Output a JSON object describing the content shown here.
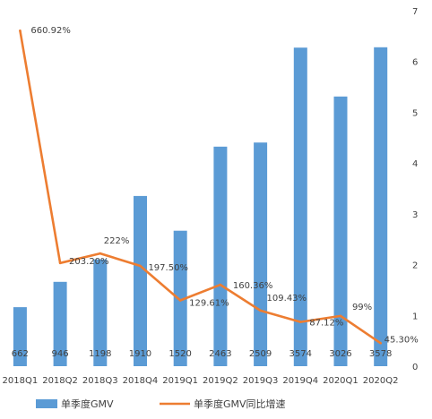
{
  "chart_data": {
    "type": "bar",
    "title": "",
    "xlabel": "",
    "ylabel": "",
    "categories": [
      "2018Q1",
      "2018Q2",
      "2018Q3",
      "2018Q4",
      "2019Q1",
      "2019Q2",
      "2019Q3",
      "2019Q4",
      "2020Q1",
      "2020Q2"
    ],
    "series": [
      {
        "name": "单季度GMV",
        "type": "bar",
        "axis": "right",
        "color": "#5B9BD5",
        "values": [
          662,
          946,
          1198,
          1910,
          1520,
          2463,
          2509,
          3574,
          3026,
          3578
        ],
        "labels": [
          "662",
          "946",
          "1198",
          "1910",
          "1520",
          "2463",
          "2509",
          "3574",
          "3026",
          "3578"
        ]
      },
      {
        "name": "单季度GMV同比增速",
        "type": "line",
        "axis": "right",
        "color": "#ED7D31",
        "values": [
          6.6092,
          2.032,
          2.22,
          1.975,
          1.2961,
          1.6036,
          1.0943,
          0.8712,
          0.99,
          0.453
        ],
        "labels": [
          "660.92%",
          "203.20%",
          "222%",
          "197.50%",
          "129.61%",
          "160.36%",
          "109.43%",
          "87.12%",
          "99%",
          "45.30%"
        ]
      }
    ],
    "y_right": {
      "ylim": [
        0,
        7
      ],
      "ticks": [
        "0",
        "1",
        "2",
        "3",
        "4",
        "5",
        "6",
        "7"
      ]
    },
    "legend": {
      "placement": "bottom",
      "items": [
        "单季度GMV",
        "单季度GMV同比增速"
      ]
    },
    "grid": false
  }
}
